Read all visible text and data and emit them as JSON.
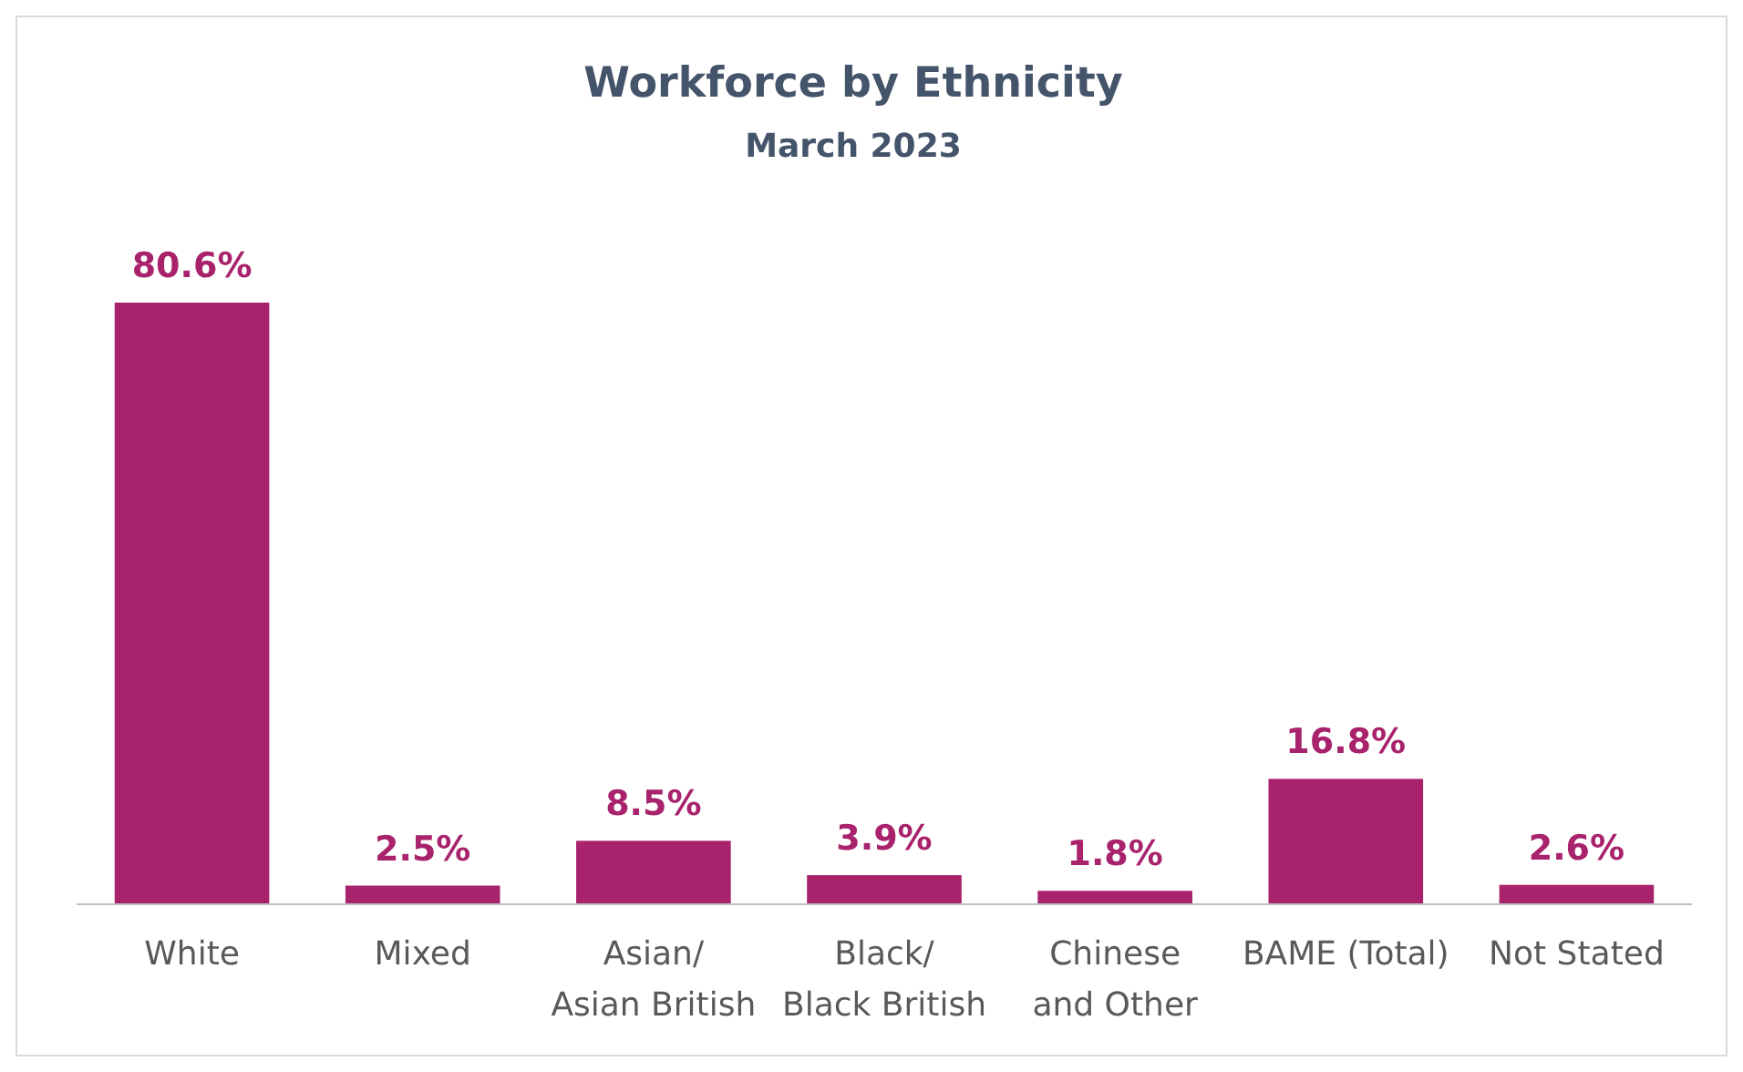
{
  "chart_data": {
    "type": "bar",
    "title": "Workforce by Ethnicity",
    "subtitle": "March 2023",
    "categories": [
      "White",
      "Mixed",
      "Asian/\nAsian British",
      "Black/\nBlack British",
      "Chinese\nand Other",
      "BAME (Total)",
      "Not Stated"
    ],
    "values": [
      80.6,
      2.5,
      8.5,
      3.9,
      1.8,
      16.8,
      2.6
    ],
    "value_labels": [
      "80.6%",
      "2.5%",
      "8.5%",
      "3.9%",
      "1.8%",
      "16.8%",
      "2.6%"
    ],
    "color": "#a8226c"
  }
}
